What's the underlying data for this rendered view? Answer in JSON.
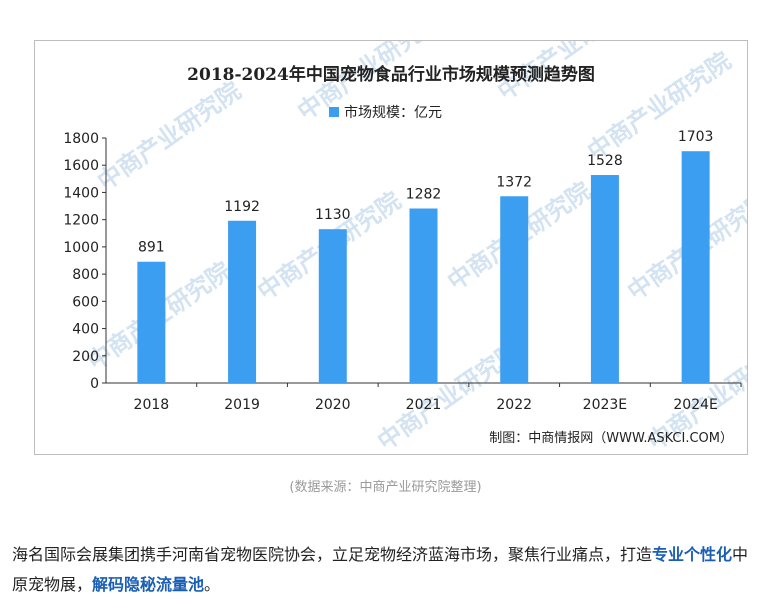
{
  "chart_data": {
    "type": "bar",
    "title": "2018-2024年中国宠物食品行业市场规模预测趋势图",
    "legend": {
      "label": "市场规模：亿元",
      "placement": "top-center"
    },
    "categories": [
      "2018",
      "2019",
      "2020",
      "2021",
      "2022",
      "2023E",
      "2024E"
    ],
    "values": [
      891,
      1192,
      1130,
      1282,
      1372,
      1528,
      1703
    ],
    "ylim": [
      0,
      1800
    ],
    "yticks": [
      0,
      200,
      400,
      600,
      800,
      1000,
      1200,
      1400,
      1600,
      1800
    ],
    "xlabel": "",
    "ylabel": "",
    "grid": false,
    "bar_color": "#3c9ef0",
    "watermark": "中商产业研究院",
    "credit": "制图：中商情报网（WWW.ASKCI.COM）"
  },
  "caption": "(数据来源：中商产业研究院整理)",
  "paragraph": {
    "line1": "海名国际会展集团携手河南省宠物医院协会，立足宠物经济蓝海市场，聚焦行业痛点，打造",
    "highlight1": "专业个性化",
    "mid": "中原宠物展，",
    "highlight2": "解码隐秘流量池",
    "end": "。"
  }
}
